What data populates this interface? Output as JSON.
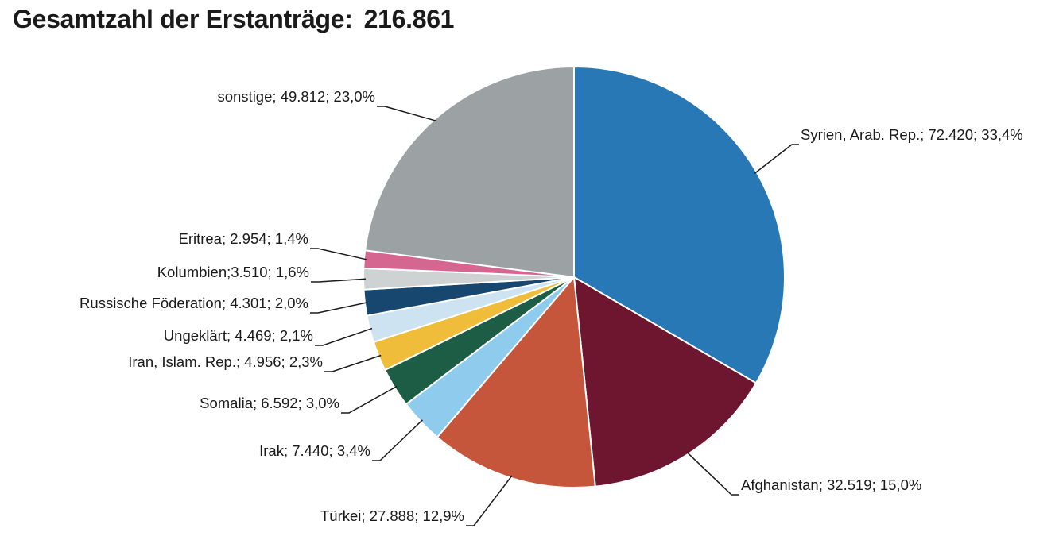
{
  "title": {
    "label": "Gesamtzahl der Erstanträge:",
    "value": "216.861"
  },
  "chart_data": {
    "type": "pie",
    "title": "Gesamtzahl der Erstanträge: 216.861",
    "total": 216861,
    "start": "12 o'clock, clockwise",
    "slices": [
      {
        "name": "Syrien, Arab. Rep.",
        "value": 72420,
        "percent": 33.4,
        "color": "#2878b5",
        "label": "Syrien, Arab. Rep.; 72.420; 33,4%"
      },
      {
        "name": "Afghanistan",
        "value": 32519,
        "percent": 15.0,
        "color": "#6e1530",
        "label": "Afghanistan; 32.519; 15,0%"
      },
      {
        "name": "Türkei",
        "value": 27888,
        "percent": 12.9,
        "color": "#c5563b",
        "label": "Türkei; 27.888; 12,9%"
      },
      {
        "name": "Irak",
        "value": 7440,
        "percent": 3.4,
        "color": "#8ecbec",
        "label": "Irak; 7.440; 3,4%"
      },
      {
        "name": "Somalia",
        "value": 6592,
        "percent": 3.0,
        "color": "#1d5c45",
        "label": "Somalia; 6.592; 3,0%"
      },
      {
        "name": "Iran, Islam. Rep.",
        "value": 4956,
        "percent": 2.3,
        "color": "#f0bd3a",
        "label": "Iran, Islam. Rep.; 4.956; 2,3%"
      },
      {
        "name": "Ungeklärt",
        "value": 4469,
        "percent": 2.1,
        "color": "#cde3f1",
        "label": "Ungeklärt; 4.469; 2,1%"
      },
      {
        "name": "Russische Föderation",
        "value": 4301,
        "percent": 2.0,
        "color": "#17476f",
        "label": "Russische Föderation; 4.301; 2,0%"
      },
      {
        "name": "Kolumbien",
        "value": 3510,
        "percent": 1.6,
        "color": "#cfd2d3",
        "label": "Kolumbien;3.510; 1,6%"
      },
      {
        "name": "Eritrea",
        "value": 2954,
        "percent": 1.4,
        "color": "#d4668f",
        "label": "Eritrea; 2.954; 1,4%"
      },
      {
        "name": "sonstige",
        "value": 49812,
        "percent": 23.0,
        "color": "#9ca2a4",
        "label": "sonstige; 49.812; 23,0%"
      }
    ]
  }
}
